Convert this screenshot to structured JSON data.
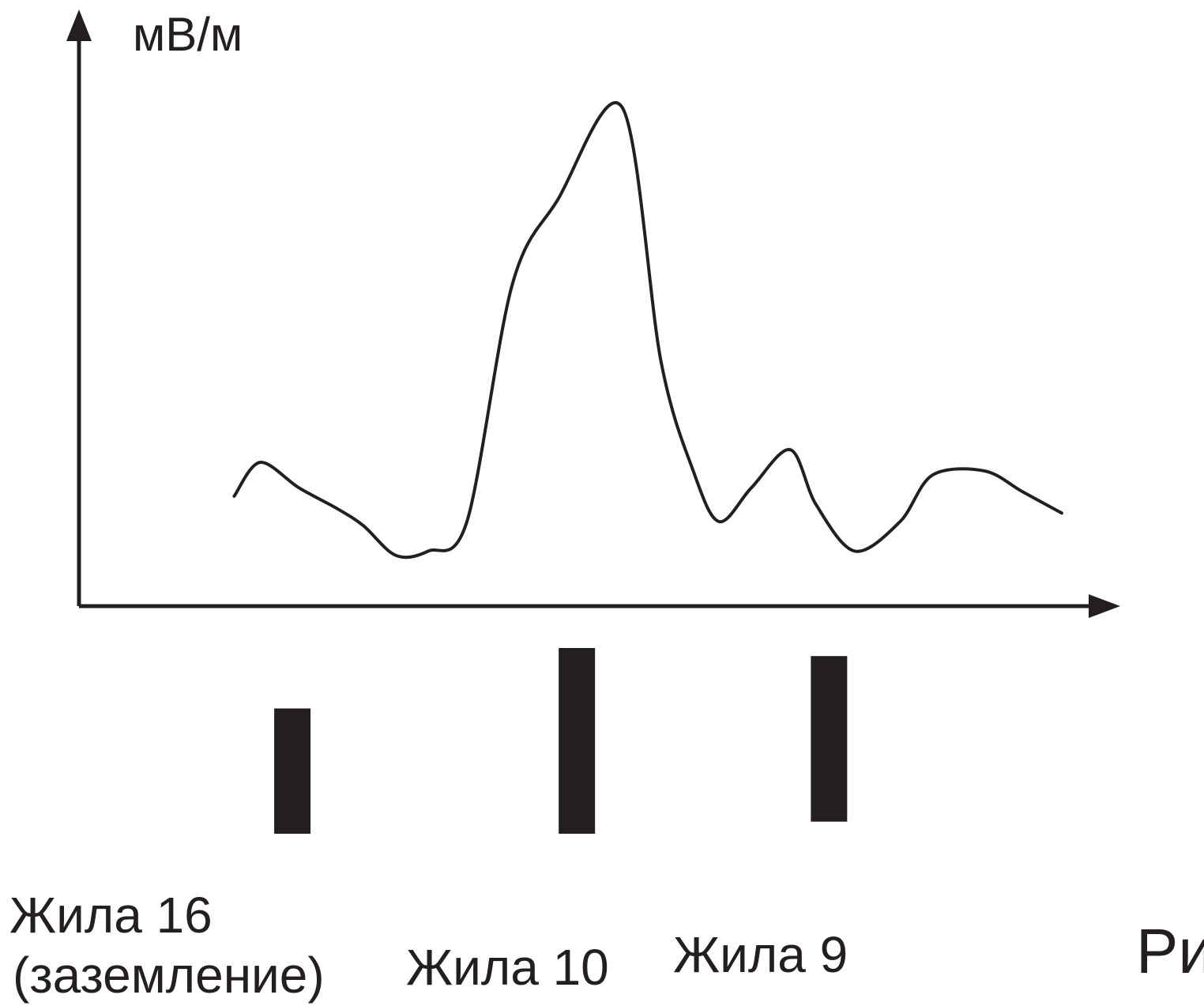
{
  "chart_data": {
    "type": "line",
    "title": "",
    "xlabel": "",
    "ylabel": "мВ/м",
    "grid": false,
    "legend": "none",
    "series": [
      {
        "points": [
          [
            0.0,
            0.08
          ],
          [
            0.04,
            0.16
          ],
          [
            0.1,
            0.1
          ],
          [
            0.16,
            0.05
          ],
          [
            0.2,
            0.01
          ],
          [
            0.25,
            -0.06
          ],
          [
            0.3,
            -0.05
          ],
          [
            0.36,
            0.02
          ],
          [
            0.43,
            0.58
          ],
          [
            0.5,
            0.78
          ],
          [
            0.6,
            1.0
          ],
          [
            0.66,
            0.4
          ],
          [
            0.71,
            0.14
          ],
          [
            0.75,
            0.02
          ],
          [
            0.8,
            0.1
          ],
          [
            0.86,
            0.19
          ],
          [
            0.9,
            0.06
          ],
          [
            0.96,
            -0.05
          ],
          [
            1.03,
            0.02
          ],
          [
            1.08,
            0.13
          ],
          [
            1.16,
            0.14
          ],
          [
            1.22,
            0.09
          ],
          [
            1.28,
            0.04
          ]
        ]
      }
    ],
    "xlim": [
      -0.24,
      1.5
    ],
    "ylim": [
      -0.18,
      1.22
    ],
    "markers": [
      {
        "label": "Жила 16",
        "sublabel": "(заземление)",
        "x": 0.09,
        "top": 0.85,
        "bottom": 0.5
      },
      {
        "label": "Жила 10",
        "x": 0.53,
        "top": 1.0,
        "bottom": 0.5
      },
      {
        "label": "Жила 9",
        "x": 0.92,
        "top": 0.98,
        "bottom": 0.53
      }
    ],
    "colors": {
      "ink": "#231f20"
    }
  },
  "caption": "Ри"
}
